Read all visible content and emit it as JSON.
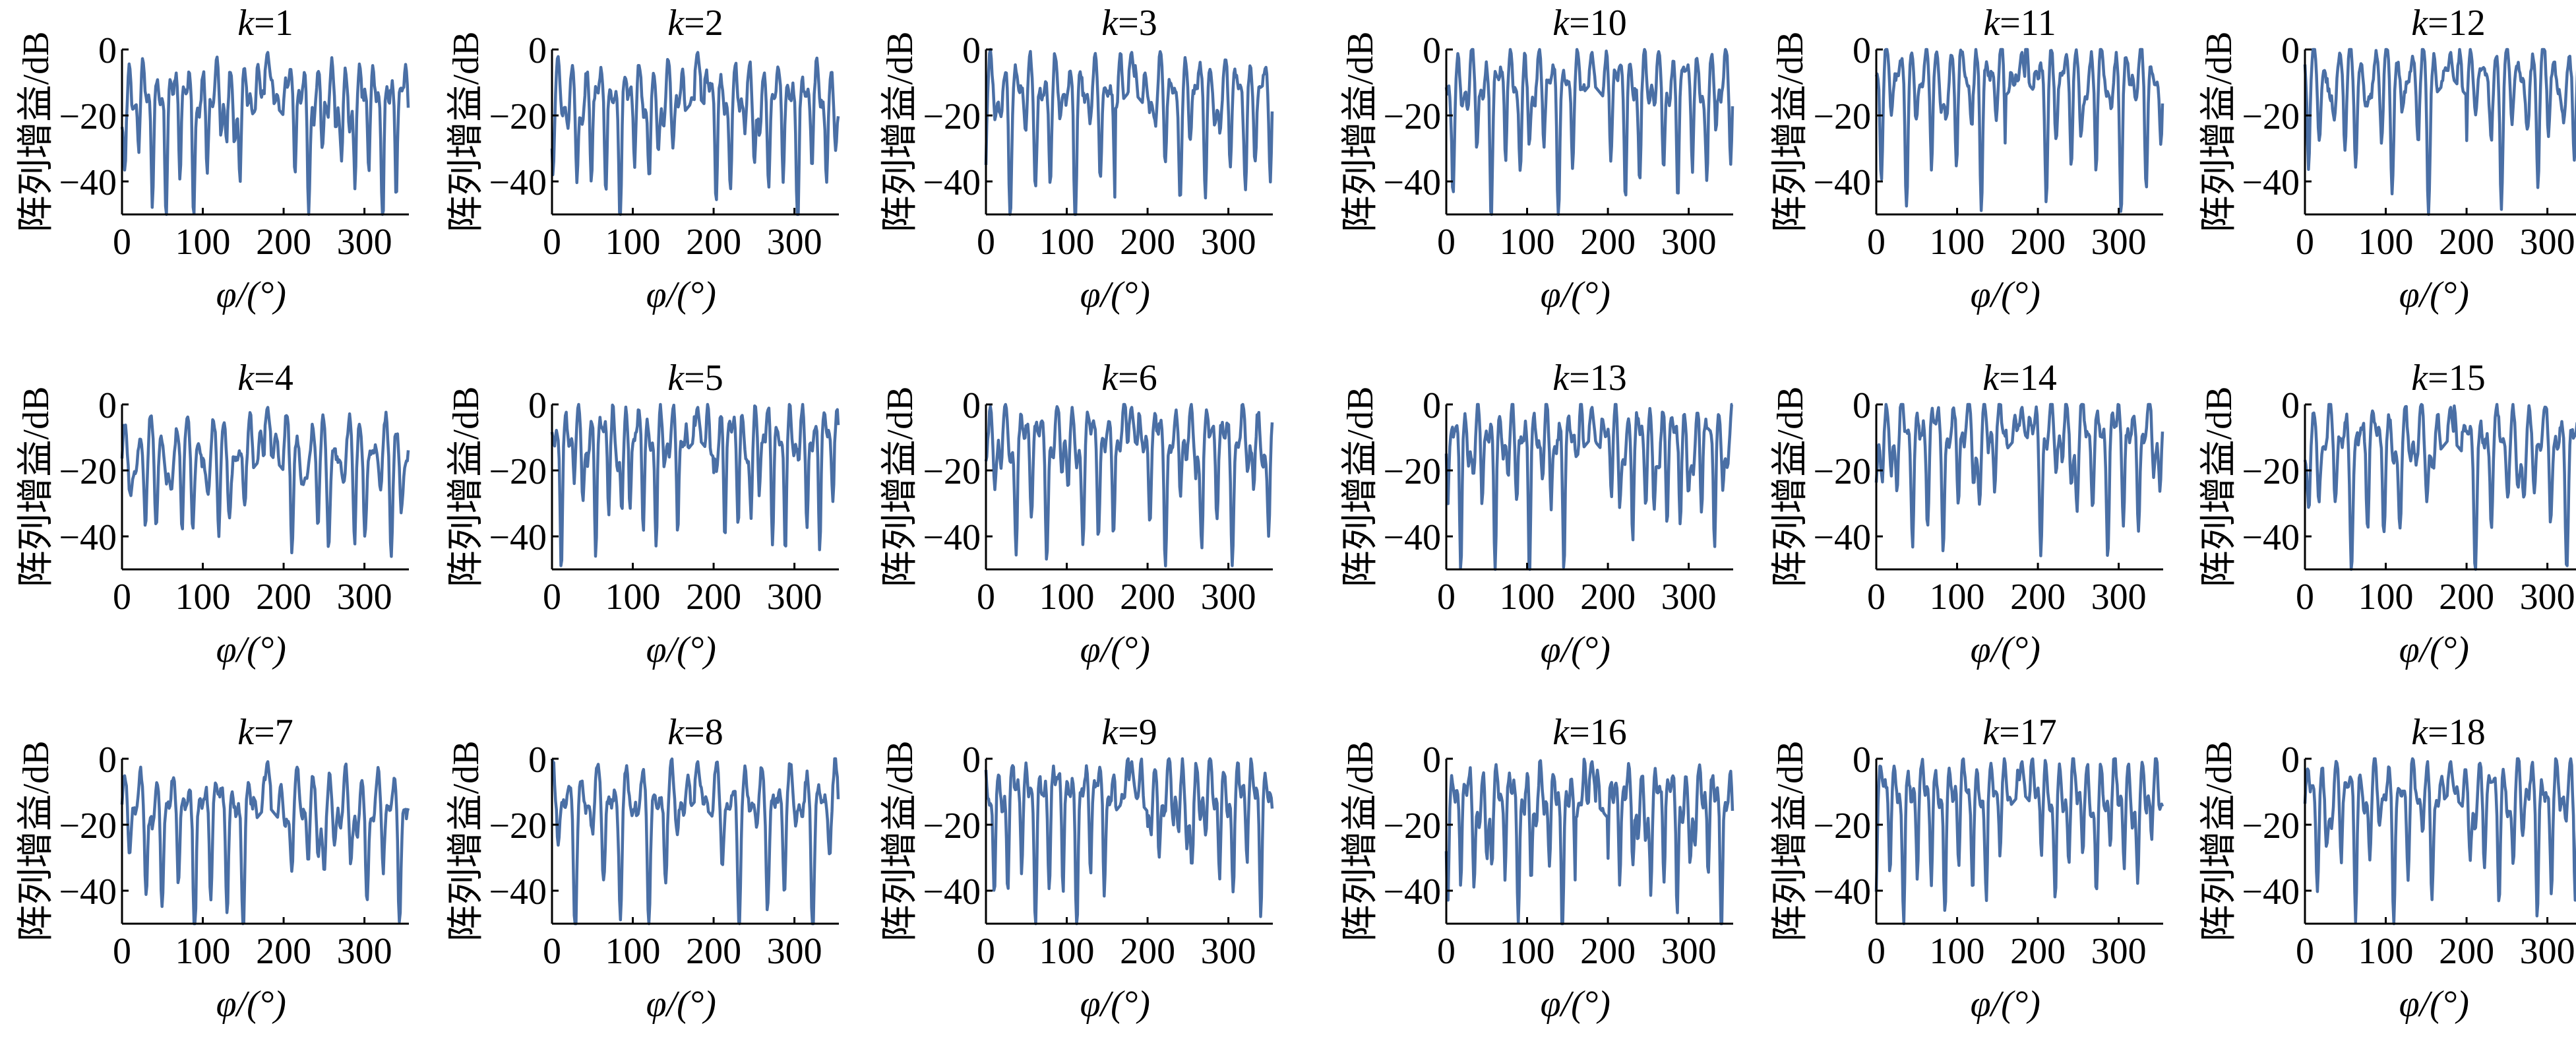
{
  "figure": {
    "line_color": "#4a6fa5",
    "title_prefix": "k",
    "title_eq": "=",
    "ylabel": "阵列增益/dB",
    "xlabel": "φ/(°)",
    "xticks": [
      0,
      100,
      200,
      300
    ],
    "yticks": [
      0,
      -20,
      -40
    ],
    "xlim": [
      0,
      355
    ],
    "ylim": [
      -50,
      0
    ]
  },
  "chart_data": [
    {
      "type": "line",
      "k": "1",
      "peak_x": 180,
      "peak_y": 0,
      "sidelobe_level": -12,
      "x_range": [
        0,
        355
      ],
      "y_range": [
        -50,
        0
      ]
    },
    {
      "type": "line",
      "k": "2",
      "peak_x": 180,
      "peak_y": 0,
      "sidelobe_level": -12,
      "x_range": [
        0,
        355
      ],
      "y_range": [
        -50,
        0
      ]
    },
    {
      "type": "line",
      "k": "3",
      "peak_x": 180,
      "peak_y": 0,
      "sidelobe_level": -10,
      "x_range": [
        0,
        355
      ],
      "y_range": [
        -50,
        0
      ]
    },
    {
      "type": "line",
      "k": "4",
      "peak_x": 180,
      "peak_y": 0,
      "sidelobe_level": -12,
      "x_range": [
        0,
        355
      ],
      "y_range": [
        -50,
        0
      ]
    },
    {
      "type": "line",
      "k": "5",
      "peak_x": 180,
      "peak_y": 0,
      "sidelobe_level": -8,
      "x_range": [
        0,
        355
      ],
      "y_range": [
        -50,
        0
      ]
    },
    {
      "type": "line",
      "k": "6",
      "peak_x": 180,
      "peak_y": 0,
      "sidelobe_level": -8,
      "x_range": [
        0,
        355
      ],
      "y_range": [
        -50,
        0
      ]
    },
    {
      "type": "line",
      "k": "7",
      "peak_x": 180,
      "peak_y": 0,
      "sidelobe_level": -12,
      "x_range": [
        0,
        355
      ],
      "y_range": [
        -50,
        0
      ]
    },
    {
      "type": "line",
      "k": "8",
      "peak_x": 180,
      "peak_y": 0,
      "sidelobe_level": -10,
      "x_range": [
        0,
        355
      ],
      "y_range": [
        -50,
        0
      ]
    },
    {
      "type": "line",
      "k": "9",
      "peak_x": 180,
      "peak_y": 0,
      "sidelobe_level": -8,
      "x_range": [
        0,
        355
      ],
      "y_range": [
        -50,
        0
      ]
    },
    {
      "type": "line",
      "k": "10",
      "peak_x": 180,
      "peak_y": 0,
      "sidelobe_level": -8,
      "x_range": [
        0,
        355
      ],
      "y_range": [
        -50,
        0
      ]
    },
    {
      "type": "line",
      "k": "11",
      "peak_x": 180,
      "peak_y": 0,
      "sidelobe_level": -6,
      "x_range": [
        0,
        355
      ],
      "y_range": [
        -50,
        0
      ]
    },
    {
      "type": "line",
      "k": "12",
      "peak_x": 180,
      "peak_y": 0,
      "sidelobe_level": -6,
      "x_range": [
        0,
        355
      ],
      "y_range": [
        -50,
        0
      ]
    },
    {
      "type": "line",
      "k": "13",
      "peak_x": 180,
      "peak_y": 0,
      "sidelobe_level": -8,
      "x_range": [
        0,
        355
      ],
      "y_range": [
        -50,
        0
      ]
    },
    {
      "type": "line",
      "k": "14",
      "peak_x": 180,
      "peak_y": 0,
      "sidelobe_level": -6,
      "x_range": [
        0,
        355
      ],
      "y_range": [
        -50,
        0
      ]
    },
    {
      "type": "line",
      "k": "15",
      "peak_x": 180,
      "peak_y": 0,
      "sidelobe_level": -8,
      "x_range": [
        0,
        355
      ],
      "y_range": [
        -50,
        0
      ]
    },
    {
      "type": "line",
      "k": "16",
      "peak_x": 180,
      "peak_y": 0,
      "sidelobe_level": -10,
      "x_range": [
        0,
        355
      ],
      "y_range": [
        -50,
        0
      ]
    },
    {
      "type": "line",
      "k": "17",
      "peak_x": 180,
      "peak_y": 0,
      "sidelobe_level": -8,
      "x_range": [
        0,
        355
      ],
      "y_range": [
        -50,
        0
      ]
    },
    {
      "type": "line",
      "k": "18",
      "peak_x": 180,
      "peak_y": 0,
      "sidelobe_level": -8,
      "x_range": [
        0,
        355
      ],
      "y_range": [
        -50,
        0
      ]
    }
  ]
}
